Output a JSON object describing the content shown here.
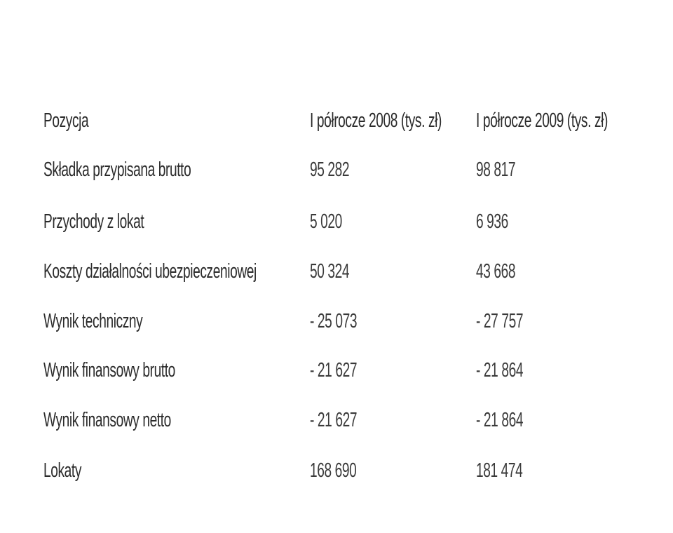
{
  "table": {
    "headers": [
      "Pozycja",
      "I półrocze 2008 (tys. zł)",
      "I półrocze 2009 (tys. zł)"
    ],
    "rows": [
      [
        "Składka przypisana brutto",
        "95 282",
        "98 817"
      ],
      [
        "Przychody z lokat",
        "5 020",
        "6 936"
      ],
      [
        "Koszty działalności ubezpieczeniowej",
        "50 324",
        "43 668"
      ],
      [
        "Wynik techniczny",
        "- 25 073",
        "- 27 757"
      ],
      [
        "Wynik finansowy brutto",
        "- 21 627",
        "- 21 864"
      ],
      [
        "Wynik finansowy netto",
        "- 21 627",
        "- 21 864"
      ],
      [
        "Lokaty",
        "168 690",
        "181 474"
      ]
    ]
  },
  "colors": {
    "text": "#2b2b2b",
    "background": "#ffffff"
  }
}
